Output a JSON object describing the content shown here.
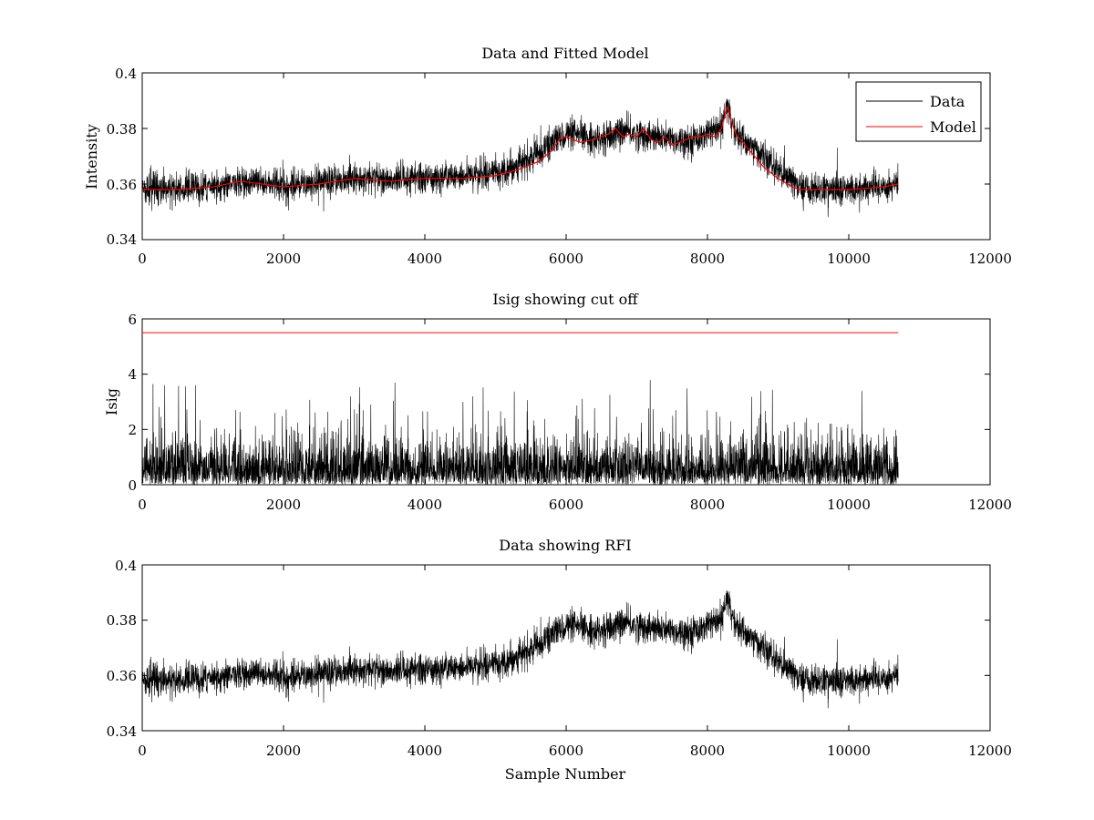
{
  "figure": {
    "panels": [
      {
        "title": "Data and Fitted Model",
        "ylabel": "Intensity",
        "xlabel": "",
        "xticks": [
          "0",
          "2000",
          "4000",
          "6000",
          "8000",
          "10000",
          "12000"
        ],
        "yticks": [
          "0.34",
          "0.36",
          "0.38",
          "0.4"
        ],
        "legend": {
          "data": "Data",
          "model": "Model"
        }
      },
      {
        "title": "Isig showing cut off",
        "ylabel": "Isig",
        "xlabel": "",
        "xticks": [
          "0",
          "2000",
          "4000",
          "6000",
          "8000",
          "10000",
          "12000"
        ],
        "yticks": [
          "0",
          "2",
          "4",
          "6"
        ]
      },
      {
        "title": "Data showing RFI",
        "ylabel": "",
        "xlabel": "Sample Number",
        "xticks": [
          "0",
          "2000",
          "4000",
          "6000",
          "8000",
          "10000",
          "12000"
        ],
        "yticks": [
          "0.34",
          "0.36",
          "0.38",
          "0.4"
        ]
      }
    ]
  },
  "chart_data": [
    {
      "type": "line",
      "title": "Data and Fitted Model",
      "xlabel": "",
      "ylabel": "Intensity",
      "xlim": [
        0,
        12000
      ],
      "ylim": [
        0.34,
        0.4
      ],
      "legend_position": "top-right",
      "series": [
        {
          "name": "Data",
          "color": "#000000",
          "noise_amplitude": 0.005,
          "x": [
            0,
            1000,
            1400,
            2000,
            3000,
            4000,
            5000,
            5500,
            5800,
            6000,
            6500,
            6800,
            7000,
            7200,
            7500,
            7800,
            8000,
            8200,
            8280,
            8400,
            8700,
            9000,
            9300,
            9500,
            10000,
            10500,
            10700
          ],
          "y": [
            0.358,
            0.359,
            0.361,
            0.359,
            0.362,
            0.362,
            0.364,
            0.369,
            0.375,
            0.378,
            0.376,
            0.379,
            0.378,
            0.377,
            0.376,
            0.376,
            0.378,
            0.38,
            0.388,
            0.378,
            0.372,
            0.365,
            0.359,
            0.358,
            0.358,
            0.359,
            0.36
          ]
        },
        {
          "name": "Model",
          "color": "#ff0000",
          "x": [
            0,
            500,
            1000,
            1400,
            2000,
            2500,
            3000,
            3500,
            4000,
            4500,
            5000,
            5300,
            5600,
            5800,
            5900,
            6000,
            6200,
            6400,
            6600,
            6700,
            6800,
            6900,
            7000,
            7100,
            7200,
            7300,
            7400,
            7500,
            7600,
            7700,
            7800,
            7900,
            8000,
            8100,
            8200,
            8250,
            8280,
            8320,
            8400,
            8500,
            8600,
            8700,
            8800,
            9000,
            9200,
            9300,
            9500,
            10000,
            10500,
            10700
          ],
          "y": [
            0.358,
            0.358,
            0.359,
            0.361,
            0.359,
            0.36,
            0.362,
            0.361,
            0.362,
            0.362,
            0.363,
            0.365,
            0.368,
            0.372,
            0.376,
            0.377,
            0.375,
            0.376,
            0.378,
            0.38,
            0.377,
            0.378,
            0.377,
            0.38,
            0.376,
            0.375,
            0.377,
            0.374,
            0.375,
            0.376,
            0.377,
            0.377,
            0.378,
            0.377,
            0.38,
            0.385,
            0.388,
            0.384,
            0.378,
            0.375,
            0.372,
            0.369,
            0.366,
            0.362,
            0.359,
            0.358,
            0.358,
            0.358,
            0.359,
            0.36
          ]
        }
      ]
    },
    {
      "type": "line",
      "title": "Isig showing cut off",
      "xlabel": "",
      "ylabel": "Isig",
      "xlim": [
        0,
        12000
      ],
      "ylim": [
        0,
        6
      ],
      "series": [
        {
          "color": "#000000",
          "x": [
            0,
            10700
          ],
          "y_typical_range": [
            0,
            2.2
          ],
          "y_max": 3.8
        },
        {
          "color": "#ff0000",
          "x": [
            0,
            10700
          ],
          "y": [
            5.5,
            5.5
          ]
        }
      ]
    },
    {
      "type": "line",
      "title": "Data showing RFI",
      "xlabel": "Sample Number",
      "ylabel": "",
      "xlim": [
        0,
        12000
      ],
      "ylim": [
        0.34,
        0.4
      ],
      "series": [
        {
          "color": "#000000",
          "noise_amplitude": 0.005,
          "x": [
            0,
            1000,
            1400,
            2000,
            3000,
            4000,
            5000,
            5500,
            5800,
            6000,
            6500,
            6800,
            7000,
            7200,
            7500,
            7800,
            8000,
            8200,
            8280,
            8400,
            8700,
            9000,
            9300,
            9500,
            10000,
            10500,
            10700
          ],
          "y": [
            0.358,
            0.359,
            0.361,
            0.359,
            0.362,
            0.362,
            0.364,
            0.369,
            0.375,
            0.378,
            0.376,
            0.379,
            0.378,
            0.377,
            0.376,
            0.376,
            0.378,
            0.38,
            0.388,
            0.378,
            0.372,
            0.365,
            0.359,
            0.358,
            0.358,
            0.359,
            0.36
          ]
        }
      ]
    }
  ]
}
